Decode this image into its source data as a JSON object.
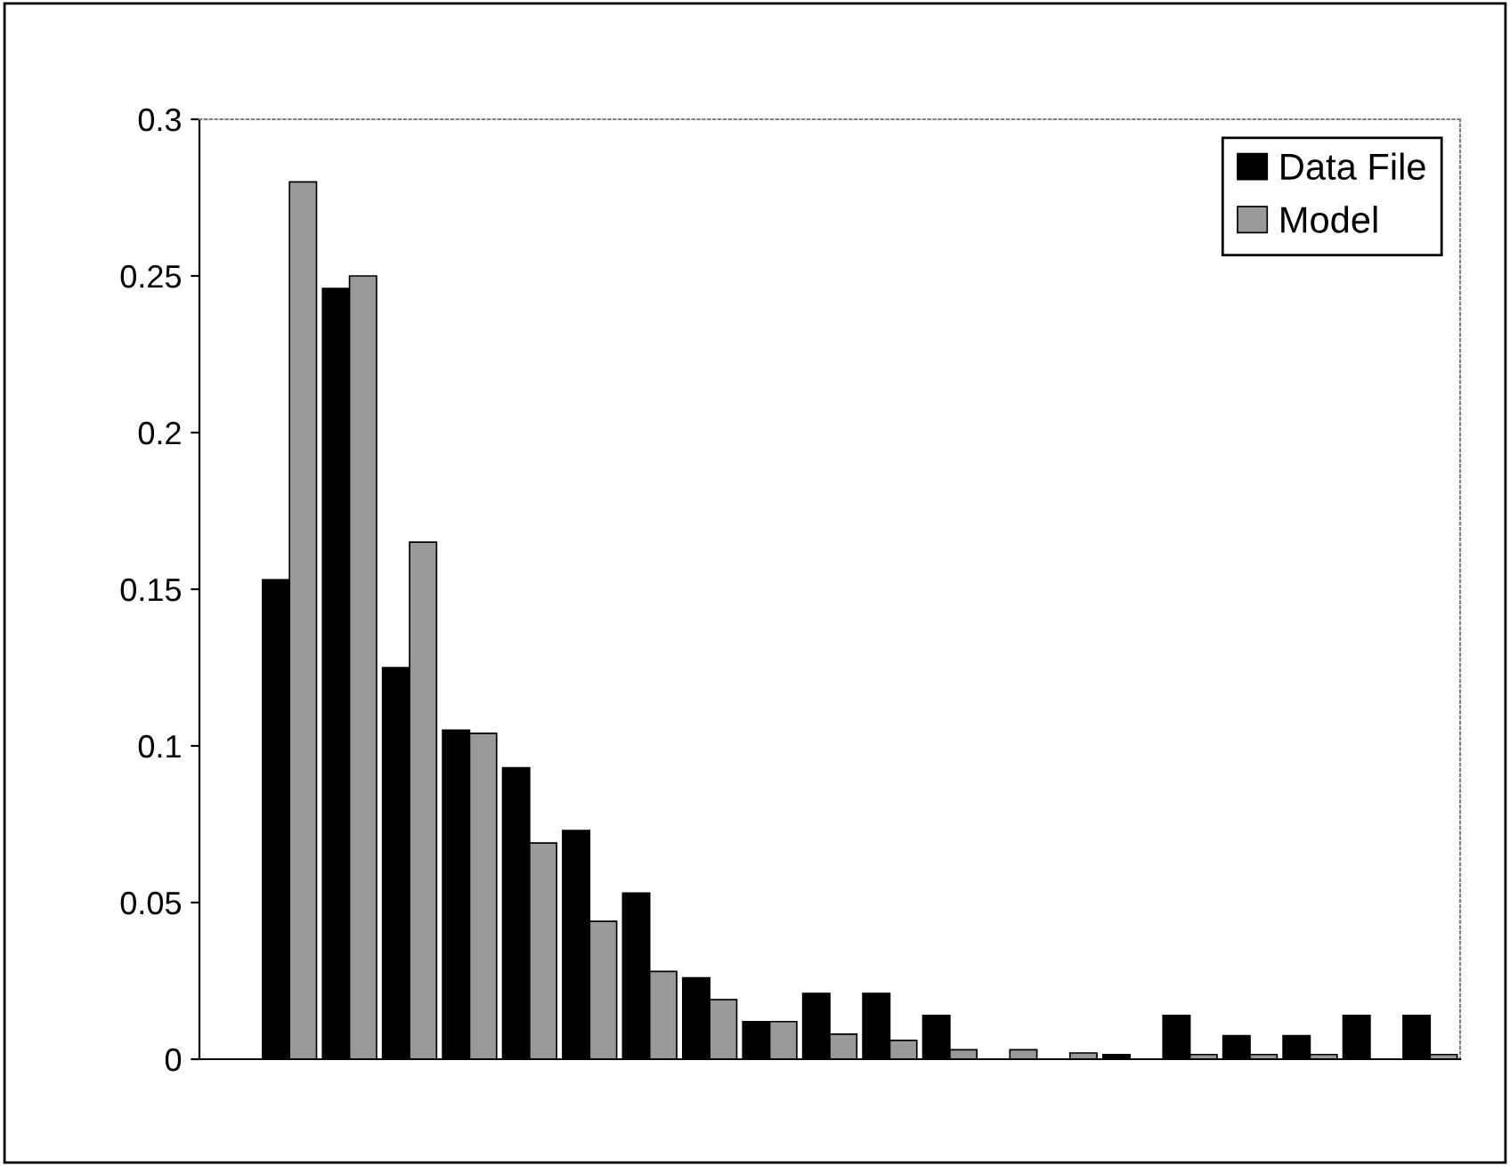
{
  "chart_data": {
    "type": "bar",
    "categories": [
      null,
      null,
      null,
      null,
      null,
      null,
      null,
      null,
      null,
      null,
      null,
      null,
      null,
      null,
      null,
      null,
      null,
      null,
      null,
      null,
      null
    ],
    "series": [
      {
        "name": "Data File",
        "color": "#000000",
        "values": [
          null,
          0.153,
          0.246,
          0.125,
          0.105,
          0.093,
          0.073,
          0.053,
          0.026,
          0.012,
          0.021,
          0.021,
          0.014,
          null,
          null,
          0.0015,
          0.014,
          0.0075,
          0.0075,
          0.014,
          0.014
        ]
      },
      {
        "name": "Model",
        "color": "#999999",
        "values": [
          null,
          0.28,
          0.25,
          0.165,
          0.104,
          0.069,
          0.044,
          0.028,
          0.019,
          0.012,
          0.008,
          0.006,
          0.003,
          0.003,
          0.002,
          null,
          0.0015,
          0.0015,
          0.0015,
          null,
          0.0015
        ]
      }
    ],
    "ylim": [
      0,
      0.3
    ],
    "yticks": [
      0,
      0.05,
      0.1,
      0.15,
      0.2,
      0.25,
      0.3
    ],
    "grid": false,
    "legend": "top right"
  }
}
